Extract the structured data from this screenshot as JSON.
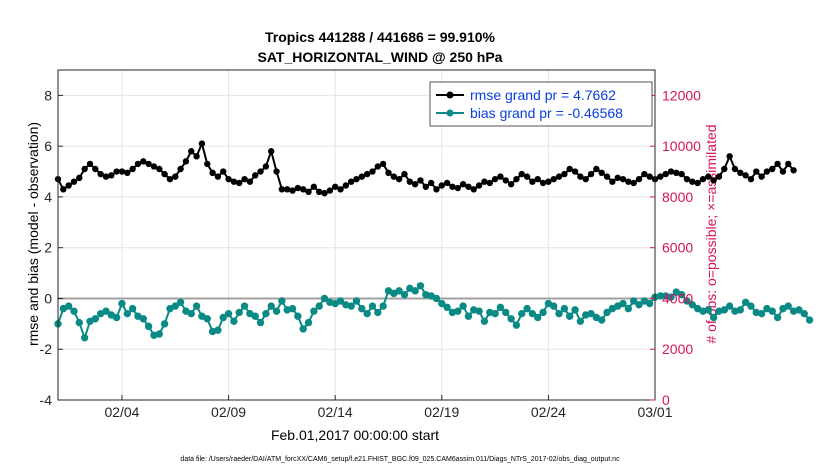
{
  "chart_data": {
    "type": "line",
    "title": "Tropics 441288 / 441686 = 99.910%",
    "subtitle": "SAT_HORIZONTAL_WIND @ 250 hPa",
    "xlabel": "Feb.01,2017 00:00:00 start",
    "ylabel_left": "rmse and bias (model - observation)",
    "ylabel_right": "# of obs: o=possible; ×=assimilated",
    "footnote": "data file: /Users/raeder/DAI/ATM_forcXX/CAM6_setup/f.e21.FHIST_BGC.f09_025.CAM6assim.011/Diags_NTrS_2017-02/obs_diag_output.nc",
    "xlim_days": [
      0,
      28
    ],
    "ylim_left": [
      -4,
      9
    ],
    "ylim_right": [
      0,
      13000
    ],
    "x_ticks": [
      {
        "day": 3,
        "label": "02/04"
      },
      {
        "day": 8,
        "label": "02/09"
      },
      {
        "day": 13,
        "label": "02/14"
      },
      {
        "day": 18,
        "label": "02/19"
      },
      {
        "day": 23,
        "label": "02/24"
      },
      {
        "day": 28,
        "label": "03/01"
      }
    ],
    "y_ticks_left": [
      -4,
      -2,
      0,
      2,
      4,
      6,
      8
    ],
    "y_ticks_right": [
      0,
      2000,
      4000,
      6000,
      8000,
      10000,
      12000
    ],
    "legend": [
      {
        "label": "rmse grand pr = 4.7662",
        "color": "#000000",
        "marker": "*"
      },
      {
        "label": "bias grand pr = -0.46568",
        "color": "#0a8a85",
        "marker": "o"
      }
    ],
    "colors": {
      "rmse": "#000000",
      "bias": "#0a8a85",
      "obs": "#d4145a",
      "legend_text": "#0a40d8",
      "zero_line": "#a0a0a0"
    },
    "time_step_days": 0.25,
    "rmse": [
      4.7,
      4.3,
      4.45,
      4.6,
      4.75,
      5.1,
      5.3,
      5.1,
      4.9,
      4.8,
      4.85,
      5.0,
      5.0,
      4.95,
      5.1,
      5.3,
      5.4,
      5.3,
      5.2,
      5.1,
      4.9,
      4.7,
      4.8,
      5.1,
      5.4,
      5.8,
      5.6,
      6.1,
      5.3,
      4.95,
      4.8,
      5.0,
      4.7,
      4.6,
      4.55,
      4.7,
      4.6,
      4.85,
      5.0,
      5.2,
      5.8,
      5.0,
      4.3,
      4.3,
      4.25,
      4.35,
      4.3,
      4.2,
      4.4,
      4.2,
      4.15,
      4.25,
      4.4,
      4.3,
      4.45,
      4.6,
      4.7,
      4.8,
      4.9,
      5.0,
      5.2,
      5.3,
      4.95,
      4.8,
      4.7,
      4.9,
      4.6,
      4.5,
      4.65,
      4.4,
      4.55,
      4.3,
      4.45,
      4.55,
      4.4,
      4.35,
      4.5,
      4.4,
      4.3,
      4.45,
      4.6,
      4.55,
      4.7,
      4.8,
      4.65,
      4.5,
      4.7,
      4.9,
      4.8,
      4.6,
      4.7,
      4.55,
      4.6,
      4.7,
      4.8,
      4.9,
      5.1,
      5.0,
      4.8,
      4.7,
      4.9,
      5.1,
      4.95,
      4.8,
      4.6,
      4.75,
      4.7,
      4.6,
      4.55,
      4.7,
      4.9,
      4.8,
      4.7,
      4.8,
      4.9,
      5.0,
      4.95,
      4.9,
      4.7,
      4.6,
      4.55,
      4.7,
      4.8,
      4.65,
      4.8,
      5.1,
      5.6,
      5.1,
      4.95,
      4.85,
      4.7,
      5.0,
      4.8,
      5.0,
      5.1,
      5.3,
      5.0,
      5.3,
      5.05
    ],
    "bias": [
      -1.0,
      -0.4,
      -0.3,
      -0.5,
      -0.95,
      -1.55,
      -0.9,
      -0.8,
      -0.6,
      -0.5,
      -0.65,
      -0.75,
      -0.2,
      -0.6,
      -0.4,
      -0.7,
      -0.8,
      -1.1,
      -1.45,
      -1.4,
      -1.0,
      -0.4,
      -0.3,
      -0.15,
      -0.5,
      -0.6,
      -0.3,
      -0.7,
      -0.8,
      -1.3,
      -1.25,
      -0.75,
      -0.6,
      -0.9,
      -0.55,
      -0.3,
      -0.6,
      -0.7,
      -0.95,
      -0.6,
      -0.3,
      -0.5,
      -0.1,
      -0.45,
      -0.4,
      -0.7,
      -1.2,
      -0.95,
      -0.5,
      -0.3,
      0.0,
      -0.15,
      -0.2,
      -0.1,
      -0.25,
      -0.3,
      -0.1,
      -0.4,
      -0.6,
      -0.3,
      -0.55,
      -0.3,
      0.3,
      0.2,
      0.3,
      0.15,
      0.4,
      0.3,
      0.5,
      0.15,
      0.1,
      0.0,
      -0.2,
      -0.35,
      -0.55,
      -0.5,
      -0.3,
      -0.7,
      -0.45,
      -0.5,
      -0.9,
      -0.55,
      -0.6,
      -0.35,
      -0.55,
      -0.8,
      -1.05,
      -0.6,
      -0.4,
      -0.6,
      -0.75,
      -0.55,
      -0.2,
      -0.3,
      -0.6,
      -0.4,
      -0.7,
      -0.45,
      -0.9,
      -0.65,
      -0.6,
      -0.75,
      -0.85,
      -0.55,
      -0.4,
      -0.3,
      -0.2,
      -0.4,
      -0.1,
      -0.25,
      -0.1,
      -0.2,
      0.05,
      0.1,
      0.1,
      0.05,
      0.25,
      0.15,
      -0.1,
      -0.25,
      -0.4,
      -0.5,
      -0.45,
      -0.75,
      -0.5,
      -0.45,
      -0.3,
      -0.5,
      -0.45,
      -0.15,
      -0.3,
      -0.55,
      -0.6,
      -0.4,
      -0.5,
      -0.75,
      -0.4,
      -0.3,
      -0.5,
      -0.45,
      -0.6,
      -0.85
    ]
  }
}
